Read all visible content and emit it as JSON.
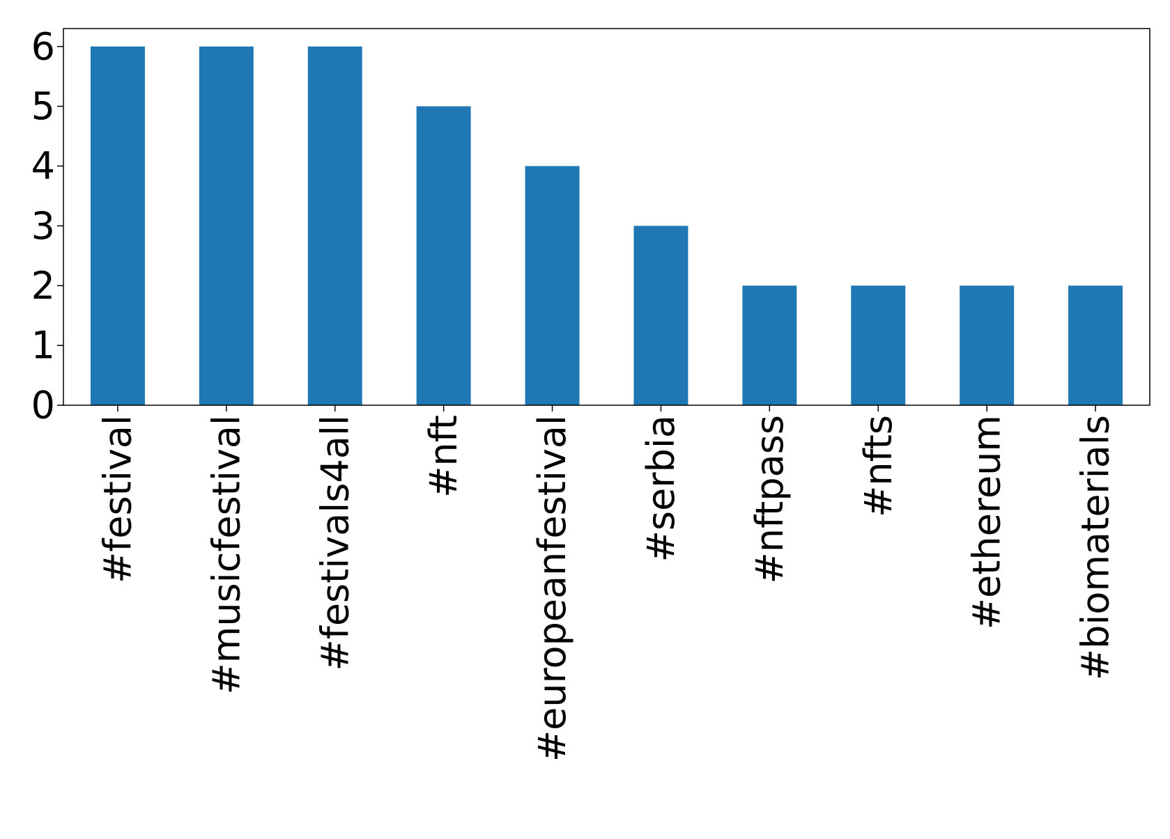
{
  "chart_data": {
    "type": "bar",
    "title": "",
    "xlabel": "",
    "ylabel": "",
    "categories": [
      "#festival",
      "#musicfestival",
      "#festivals4all",
      "#nft",
      "#europeanfestival",
      "#serbia",
      "#nftpass",
      "#nfts",
      "#ethereum",
      "#biomaterials"
    ],
    "values": [
      6,
      6,
      6,
      5,
      4,
      3,
      2,
      2,
      2,
      2
    ],
    "ylim": [
      0,
      6.3
    ],
    "yticks": [
      0,
      1,
      2,
      3,
      4,
      5,
      6
    ],
    "bar_color": "#1f77b4",
    "grid": false,
    "legend": "none"
  }
}
